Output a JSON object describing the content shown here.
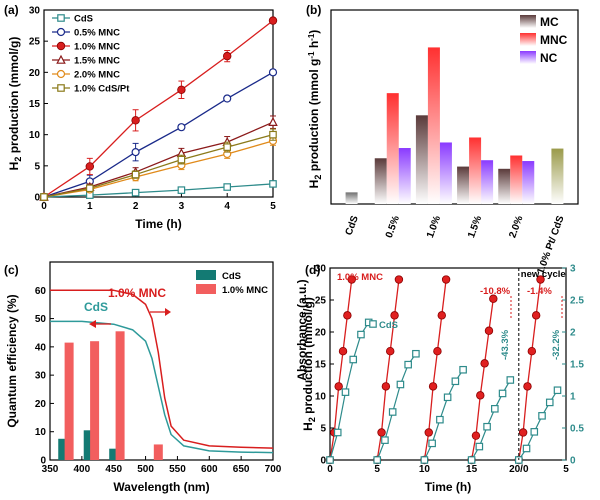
{
  "chart_data": [
    {
      "panel": "(a)",
      "type": "line",
      "xlabel": "Time (h)",
      "ylabel": "H2 production (mmol/g)",
      "xlim": [
        0,
        5
      ],
      "ylim": [
        0,
        30
      ],
      "xticks": [
        0,
        1,
        2,
        3,
        4,
        5
      ],
      "yticks": [
        0,
        5,
        10,
        15,
        20,
        25,
        30
      ],
      "x": [
        0,
        1,
        2,
        3,
        4,
        5
      ],
      "series": [
        {
          "name": "CdS",
          "color": "#2e8b8b",
          "marker": "square-open",
          "values": [
            0,
            0.3,
            0.7,
            1.1,
            1.6,
            2.1
          ]
        },
        {
          "name": "0.5% MNC",
          "color": "#1a2a8a",
          "marker": "circle-open",
          "values": [
            0,
            2.5,
            7.2,
            11.2,
            15.8,
            20.0
          ]
        },
        {
          "name": "1.0% MNC",
          "color": "#d81e1e",
          "marker": "circle-filled",
          "values": [
            0,
            4.9,
            12.3,
            17.2,
            22.6,
            28.3
          ]
        },
        {
          "name": "1.5% MNC",
          "color": "#8b1a1a",
          "marker": "triangle-open",
          "values": [
            0,
            1.6,
            4.0,
            7.0,
            8.8,
            12.0
          ]
        },
        {
          "name": "2.0% MNC",
          "color": "#e08a1a",
          "marker": "circle-open",
          "values": [
            0,
            1.2,
            3.2,
            5.1,
            6.9,
            9.0
          ]
        },
        {
          "name": "1.0% CdS/Pt",
          "color": "#8b7a1a",
          "marker": "square-open",
          "values": [
            0,
            1.4,
            3.6,
            6.0,
            8.0,
            10.0
          ]
        }
      ]
    },
    {
      "panel": "(b)",
      "type": "bar",
      "ylabel": "H2 production (mmol g-1 h-1)",
      "categories": [
        "CdS",
        "0.5%",
        "1.0%",
        "1.5%",
        "2.0%",
        "1.0% Pt/ CdS"
      ],
      "legend": [
        "MC",
        "MNC",
        "NC"
      ],
      "series": [
        {
          "name": "MC",
          "color": "#5a3a3a",
          "values": [
            0.42,
            1.65,
            3.2,
            1.35,
            1.27,
            null
          ]
        },
        {
          "name": "MNC",
          "color": "#ff3030",
          "values": [
            null,
            4.0,
            5.65,
            2.4,
            1.75,
            null
          ]
        },
        {
          "name": "NC",
          "color": "#8a3aff",
          "values": [
            null,
            2.02,
            2.22,
            1.58,
            1.55,
            null
          ]
        }
      ],
      "single": [
        {
          "category": "CdS",
          "value": 0.42,
          "color": "#707070"
        },
        {
          "category": "1.0% Pt/ CdS",
          "value": 2.0,
          "color": "#9a9a4a"
        }
      ],
      "ylim": [
        0,
        7
      ]
    },
    {
      "panel": "(c)",
      "type": "bar",
      "xlabel": "Wavelength (nm)",
      "ylabel": "Quantum efficiency (%)",
      "xlim": [
        350,
        700
      ],
      "ylim": [
        0,
        70
      ],
      "xticks": [
        350,
        400,
        450,
        500,
        550,
        600,
        650,
        700
      ],
      "yticks": [
        0,
        10,
        20,
        30,
        40,
        50,
        60
      ],
      "legend": [
        "CdS",
        "1.0% MNC"
      ],
      "bars": [
        {
          "name": "CdS",
          "color": "#137a73",
          "x": [
            370,
            410,
            450
          ],
          "values": [
            7.5,
            10.5,
            4.0
          ]
        },
        {
          "name": "1.0% MNC",
          "color": "#f25e5e",
          "x": [
            380,
            420,
            460,
            520
          ],
          "values": [
            41.5,
            42.0,
            45.5,
            5.5
          ]
        }
      ],
      "curves": [
        {
          "name": "1.0% MNC",
          "label": "1.0% MNC",
          "color": "#d81e1e",
          "x": [
            350,
            400,
            450,
            480,
            500,
            510,
            520,
            530,
            540,
            560,
            600,
            650,
            700
          ],
          "values": [
            60,
            60,
            60,
            58.5,
            55,
            50,
            38,
            22,
            12,
            7,
            5,
            4.5,
            4.2
          ]
        },
        {
          "name": "CdS",
          "label": "CdS",
          "color": "#2e9a9a",
          "x": [
            350,
            400,
            450,
            480,
            500,
            510,
            520,
            530,
            540,
            560,
            600,
            650,
            700
          ],
          "values": [
            49,
            49,
            48,
            46,
            42,
            36,
            26,
            16,
            9,
            5,
            3.2,
            2.8,
            2.6
          ]
        }
      ]
    },
    {
      "panel": "(d)",
      "type": "line",
      "xlabel": "Time (h)",
      "ylabel": "H2 production (mmol/g)",
      "ylabel_right": "Absorbance (a.u.)",
      "ylim": [
        0,
        30
      ],
      "ylim_right": [
        0,
        3.0
      ],
      "xtick_labels": [
        "0",
        "5",
        "10",
        "15",
        "20/0",
        "5"
      ],
      "yticks": [
        0,
        5,
        10,
        15,
        20,
        25,
        30
      ],
      "yticks_right": [
        0,
        0.5,
        1.0,
        1.5,
        2.0,
        2.5,
        3.0
      ],
      "legend": [
        "1.0% MNC",
        "CdS"
      ],
      "new_cycle_label": "new cycle",
      "annotations": [
        "-10.8%",
        "-1.4%",
        "-43.3%",
        "-32.2%"
      ],
      "cycle_points": [
        0,
        1,
        2,
        3,
        4,
        5
      ],
      "mnc_cycle": [
        0,
        4.3,
        11.5,
        17.0,
        22.6,
        28.2
      ],
      "mnc_cycle4": [
        0,
        3.8,
        10.1,
        15.1,
        20.2,
        25.2
      ],
      "cds_cycle1": [
        0,
        4.3,
        10.6,
        15.7,
        19.6,
        21.5
      ],
      "cds_cycle2": [
        0,
        3.1,
        7.5,
        11.8,
        14.9,
        16.6
      ],
      "cds_cycle3": [
        0,
        2.6,
        6.3,
        9.8,
        12.3,
        14.1
      ],
      "cds_cycle4": [
        0,
        2.1,
        5.2,
        8.0,
        10.4,
        12.5
      ],
      "cds_cycle5": [
        0,
        1.8,
        4.4,
        6.9,
        9.0,
        10.9
      ]
    }
  ]
}
